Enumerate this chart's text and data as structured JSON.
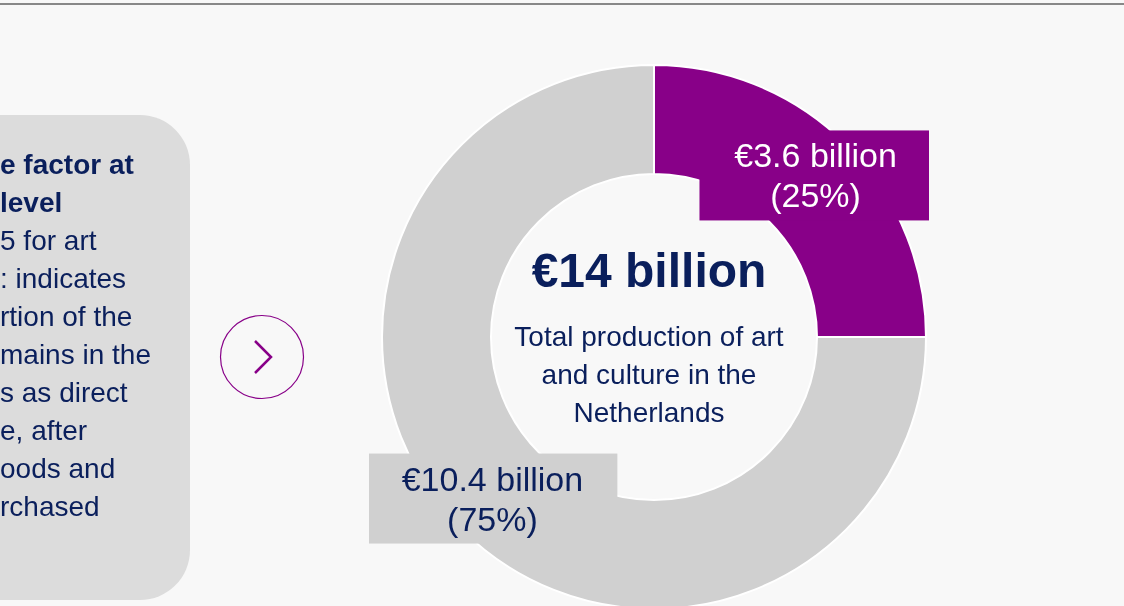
{
  "chart_data": {
    "type": "donut",
    "title": "€14 billion",
    "subtitle": "Total production of art and culture in the Netherlands",
    "categories": [
      null,
      null
    ],
    "values": [
      25,
      75
    ],
    "colors": [
      "#880088",
      "#d0d0d0"
    ],
    "value_labels": [
      "€3.6 billion\n(25%)",
      "€10.4 billion\n(75%)"
    ],
    "annotations": [
      "e factor at\nlevel",
      "5 for art\n: indicates\nrtion of the\nmains in the\ns as direct\ne, after\noods and\nrchased"
    ]
  }
}
